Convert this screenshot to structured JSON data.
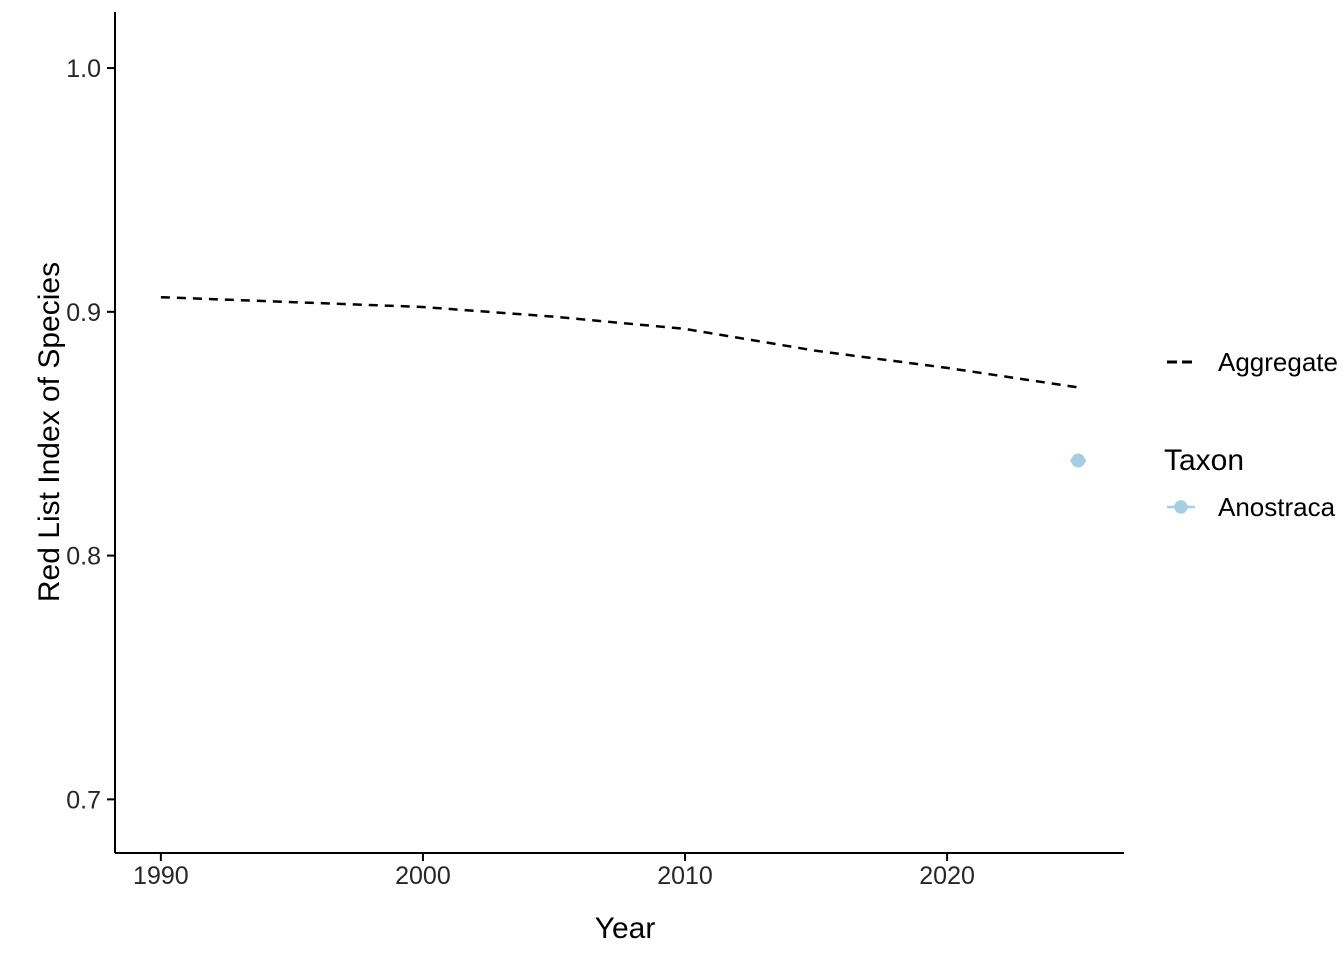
{
  "chart_data": {
    "type": "line",
    "title": "",
    "xlabel": "Year",
    "ylabel": "Red List Index of Species",
    "xlim": [
      1988.25,
      2026.75
    ],
    "ylim": [
      0.678,
      1.023
    ],
    "grid": false,
    "legend_position": "right",
    "x_ticks": {
      "values": [
        1990,
        2000,
        2010,
        2020
      ],
      "labels": [
        "1990",
        "2000",
        "2010",
        "2020"
      ]
    },
    "y_ticks": {
      "values": [
        1.0,
        0.9,
        0.8,
        0.7
      ],
      "labels": [
        "1.0",
        "0.9",
        "0.8",
        "0.7"
      ]
    },
    "series": [
      {
        "name": "Aggregate",
        "type": "line",
        "line_style": "dashed",
        "color": "#000000",
        "x": [
          1990,
          1995,
          2000,
          2005,
          2010,
          2015,
          2020,
          2025
        ],
        "values": [
          0.906,
          0.904,
          0.902,
          0.898,
          0.893,
          0.884,
          0.877,
          0.869
        ]
      },
      {
        "name": "Anostraca",
        "type": "point",
        "color": "#A6CEE3",
        "x": [
          2025
        ],
        "values": [
          0.839
        ],
        "xerr": 0.3
      }
    ],
    "legend": {
      "aggregate_label": "Aggregate",
      "group_title": "Taxon",
      "anostraca_label": "Anostraca"
    }
  },
  "colors": {
    "background": "#FFFFFF",
    "axis": "#000000",
    "tick_text": "#262626",
    "anostraca": "#A6CEE3"
  }
}
